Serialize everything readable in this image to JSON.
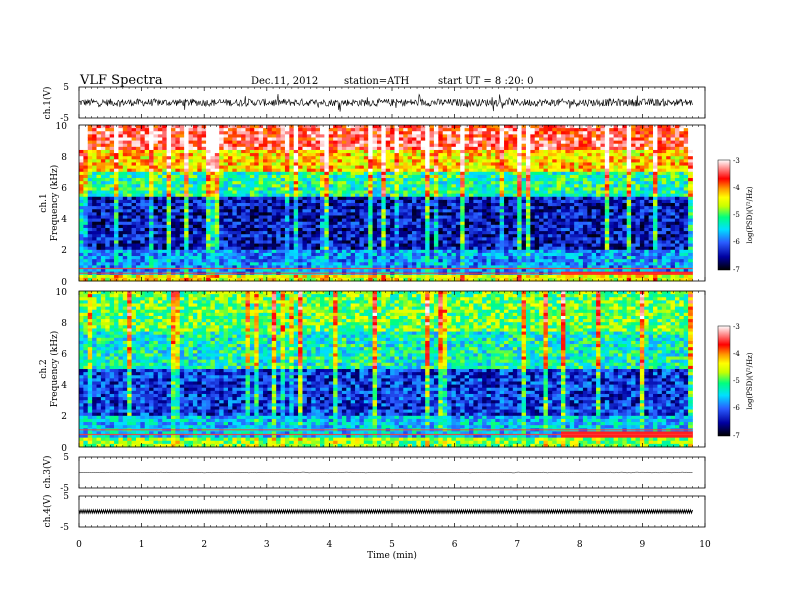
{
  "header": {
    "title": "VLF  Spectra",
    "date": "Dec.11, 2012",
    "station": "station=ATH",
    "start": "start  UT  =   8  :20: 0"
  },
  "colors": {
    "spectrogram_scale": [
      "#000000",
      "#0000a0",
      "#2a5cff",
      "#00e0ff",
      "#00ff7f",
      "#c8ff00",
      "#ffff00",
      "#ff9900",
      "#ff0000",
      "#ffffff"
    ],
    "trace": "#000000"
  },
  "chart_data": [
    {
      "type": "line",
      "panel": "ch1-waveform",
      "ylabel": "ch.1(V)",
      "ylim": [
        -5,
        5
      ],
      "yticks": [
        "5",
        "-5"
      ],
      "description_values": {
        "x_range_min": [
          0,
          9.8
        ],
        "typical_amplitude_V": 1.2,
        "peak_amplitude_V": 3
      }
    },
    {
      "type": "heatmap",
      "panel": "ch1-spectrogram",
      "ylabel_main": "ch.1",
      "ylabel_unit": "Frequency  (kHz)",
      "ylim": [
        0,
        10
      ],
      "yticks": [
        "0",
        "2",
        "4",
        "6",
        "8",
        "10"
      ],
      "x_range_min": [
        0,
        9.8
      ],
      "colorbar": {
        "label": "log(PSD)(V²/Hz)",
        "ticks": [
          "-3",
          "-4",
          "-5",
          "-6",
          "-7"
        ],
        "range": [
          -7,
          -3
        ]
      },
      "bands_kHz": [
        {
          "f_min": 0,
          "f_max": 0.5,
          "log_psd": -4.5
        },
        {
          "f_min": 0.5,
          "f_max": 2.0,
          "log_psd": -5.8
        },
        {
          "f_min": 2.0,
          "f_max": 5.5,
          "log_psd": -6.4
        },
        {
          "f_min": 5.5,
          "f_max": 7.0,
          "log_psd": -5.2
        },
        {
          "f_min": 7.0,
          "f_max": 8.5,
          "log_psd": -4.3
        },
        {
          "f_min": 8.5,
          "f_max": 10.0,
          "log_psd": -3.5
        }
      ],
      "line_at_kHz": 0.5,
      "line_enhanced_from_min": 7.7
    },
    {
      "type": "heatmap",
      "panel": "ch2-spectrogram",
      "ylabel_main": "ch.2",
      "ylabel_unit": "Frequency  (kHz)",
      "ylim": [
        0,
        10
      ],
      "yticks": [
        "0",
        "2",
        "4",
        "6",
        "8",
        "10"
      ],
      "x_range_min": [
        0,
        9.8
      ],
      "colorbar": {
        "label": "log(PSD)(V²/Hz)",
        "ticks": [
          "-3",
          "-4",
          "-5",
          "-6",
          "-7"
        ],
        "range": [
          -7,
          -3
        ]
      },
      "bands_kHz": [
        {
          "f_min": 0,
          "f_max": 0.6,
          "log_psd": -4.8
        },
        {
          "f_min": 0.6,
          "f_max": 2.0,
          "log_psd": -5.6
        },
        {
          "f_min": 2.0,
          "f_max": 5.0,
          "log_psd": -6.2
        },
        {
          "f_min": 5.0,
          "f_max": 7.5,
          "log_psd": -5.3
        },
        {
          "f_min": 7.5,
          "f_max": 10.0,
          "log_psd": -4.9
        }
      ],
      "line_at_kHz": 0.8,
      "line_enhanced_from_min": 7.7
    },
    {
      "type": "line",
      "panel": "ch3-waveform",
      "ylabel": "ch.3(V)",
      "ylim": [
        -5,
        5
      ],
      "yticks": [
        "5",
        "-5"
      ],
      "level_V": 0
    },
    {
      "type": "line",
      "panel": "ch4-waveform",
      "ylabel": "ch.4(V)",
      "ylim": [
        -5,
        5
      ],
      "yticks": [
        "5",
        "-5"
      ],
      "level_V": 0
    }
  ],
  "xaxis": {
    "label": "Time  (min)",
    "range": [
      0,
      10
    ],
    "ticks": [
      "0",
      "1",
      "2",
      "3",
      "4",
      "5",
      "6",
      "7",
      "8",
      "9",
      "10"
    ]
  }
}
